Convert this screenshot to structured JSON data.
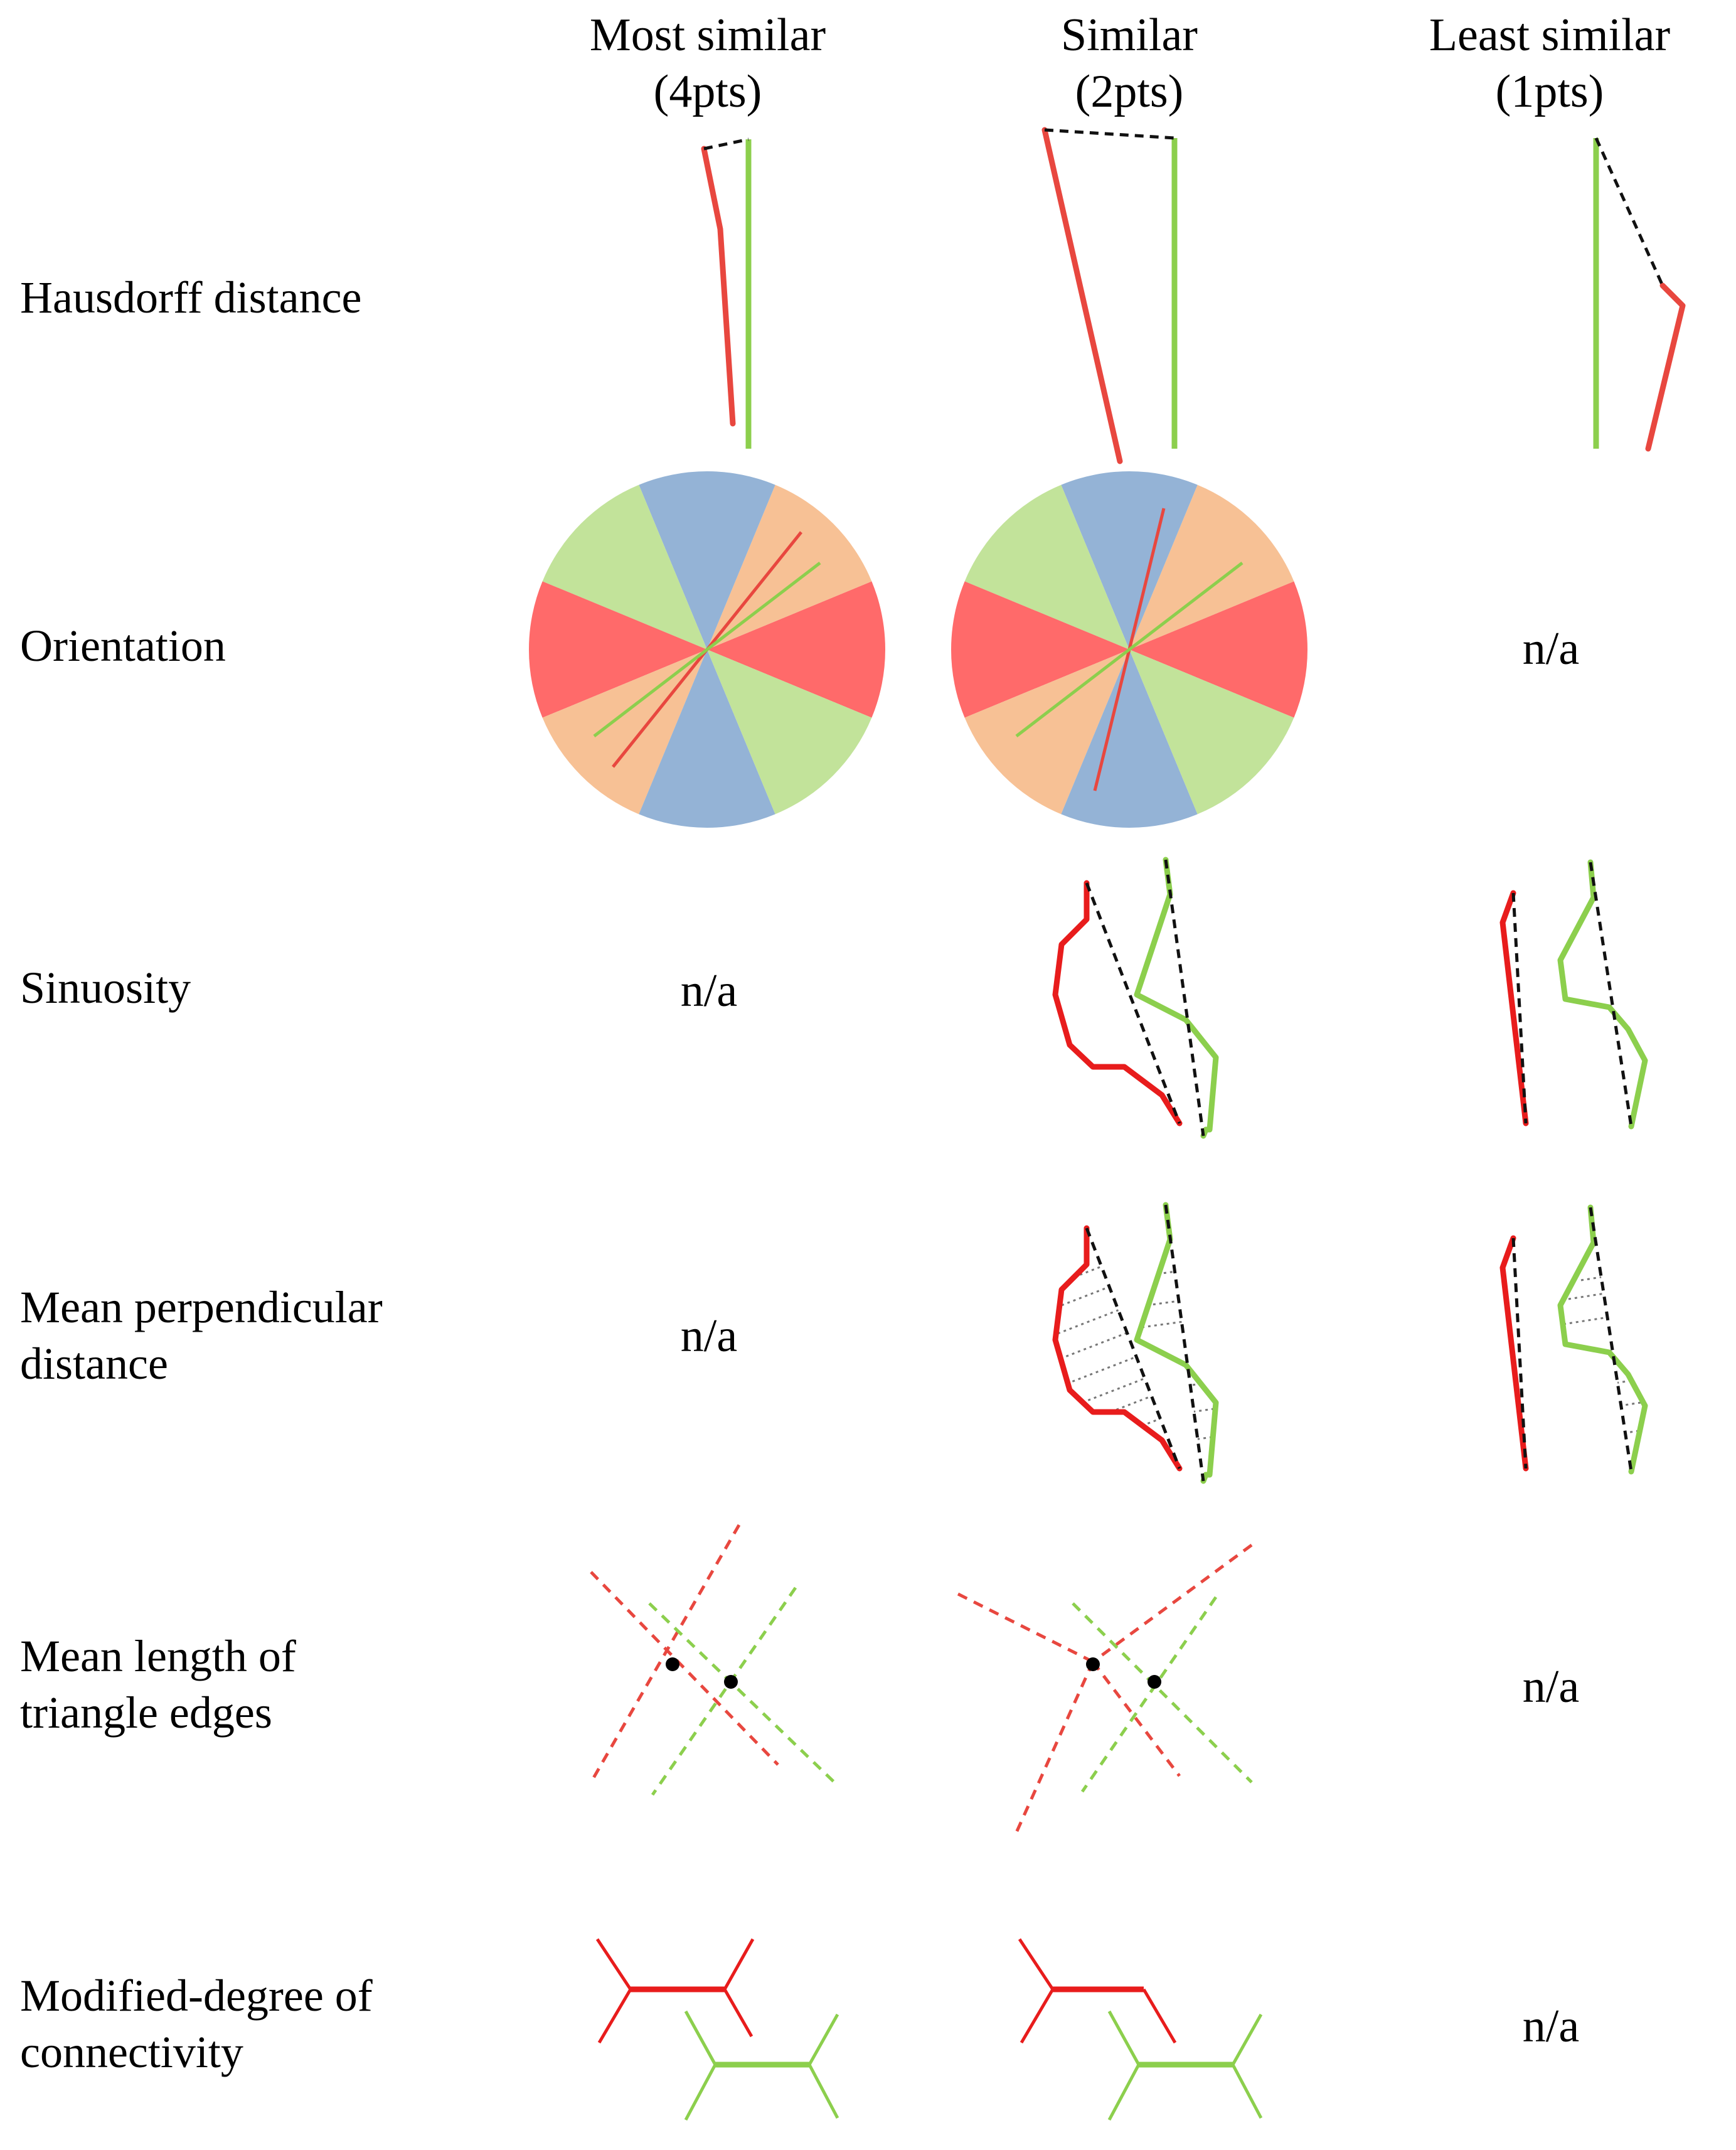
{
  "columns": [
    {
      "line1": "Most similar",
      "line2": "(4pts)"
    },
    {
      "line1": "Similar",
      "line2": "(2pts)"
    },
    {
      "line1": "Least similar",
      "line2": "(1pts)"
    }
  ],
  "rows": [
    {
      "line1": "Hausdorff distance",
      "line2": ""
    },
    {
      "line1": "Orientation",
      "line2": ""
    },
    {
      "line1": "Sinuosity",
      "line2": ""
    },
    {
      "line1": "Mean perpendicular",
      "line2": "distance"
    },
    {
      "line1": "Mean length of",
      "line2": "triangle edges"
    },
    {
      "line1": "Modified-degree of",
      "line2": "connectivity"
    }
  ],
  "na_label": "n/a",
  "colors": {
    "line_red": "#e8473f",
    "line_red_bold": "#e81c1c",
    "line_green": "#8ccf4d",
    "dashed": "#111111",
    "sector_red": "#ff6a6a",
    "sector_green": "#c2e39a",
    "sector_blue": "#94b3d6",
    "sector_orange": "#f7c195",
    "node": "#000000"
  },
  "icons": {
    "na": "not-applicable"
  }
}
